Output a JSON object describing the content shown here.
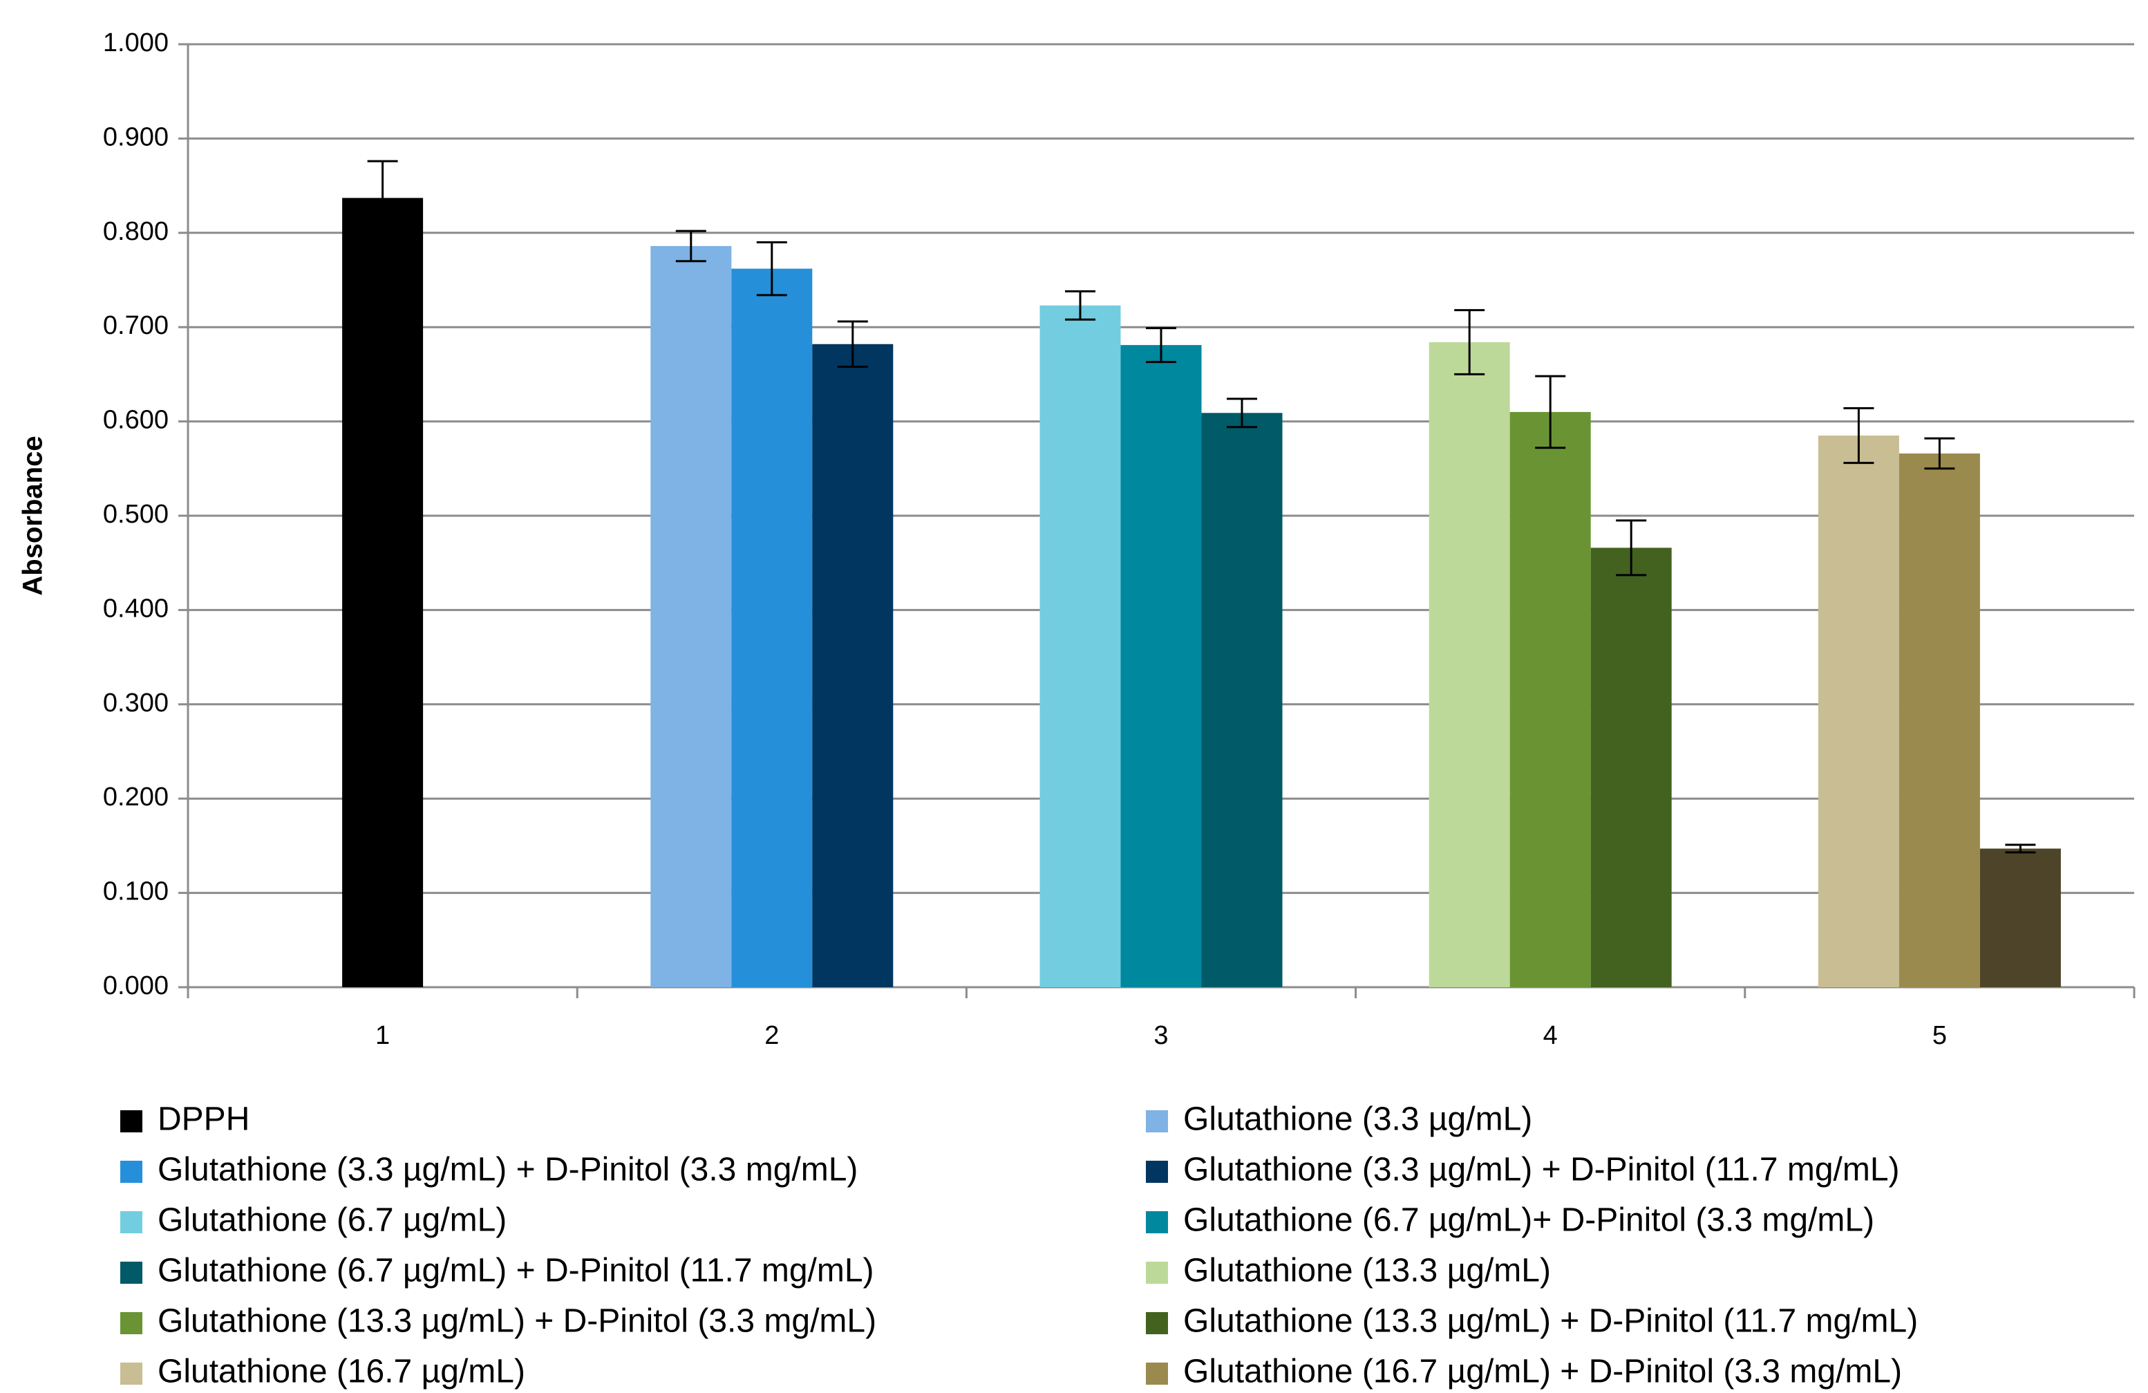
{
  "chart_data": {
    "type": "bar",
    "y_label": "Absorbance",
    "categories": [
      "1",
      "2",
      "3",
      "4",
      "5"
    ],
    "ylim": [
      0,
      1
    ],
    "yticks": [
      {
        "value": 0,
        "label": "0.000"
      },
      {
        "value": 0.1,
        "label": "0.100"
      },
      {
        "value": 0.2,
        "label": "0.200"
      },
      {
        "value": 0.3,
        "label": "0.300"
      },
      {
        "value": 0.4,
        "label": "0.400"
      },
      {
        "value": 0.5,
        "label": "0.500"
      },
      {
        "value": 0.6,
        "label": "0.600"
      },
      {
        "value": 0.7,
        "label": "0.700"
      },
      {
        "value": 0.8,
        "label": "0.800"
      },
      {
        "value": 0.9,
        "label": "0.900"
      },
      {
        "value": 1,
        "label": "1.000"
      }
    ],
    "grid": true,
    "series": [
      {
        "name": "DPPH",
        "color": "#000000",
        "values": [
          0.837,
          null,
          null,
          null,
          null
        ],
        "errors": [
          0.039,
          null,
          null,
          null,
          null
        ]
      },
      {
        "name": "Glutathione (3.3 µg/mL)",
        "color": "#7fb2e5",
        "values": [
          null,
          0.786,
          null,
          null,
          null
        ],
        "errors": [
          null,
          0.016,
          null,
          null,
          null
        ]
      },
      {
        "name": "Glutathione (3.3 µg/mL) + D-Pinitol (3.3 mg/mL)",
        "color": "#2590d9",
        "values": [
          null,
          0.762,
          null,
          null,
          null
        ],
        "errors": [
          null,
          0.028,
          null,
          null,
          null
        ]
      },
      {
        "name": "Glutathione (3.3 µg/mL) + D-Pinitol (11.7 mg/mL)",
        "color": "#003660",
        "values": [
          null,
          0.682,
          null,
          null,
          null
        ],
        "errors": [
          null,
          0.024,
          null,
          null,
          null
        ]
      },
      {
        "name": "Glutathione (6.7 µg/mL)",
        "color": "#72cde0",
        "values": [
          null,
          null,
          0.723,
          null,
          null
        ],
        "errors": [
          null,
          null,
          0.015,
          null,
          null
        ]
      },
      {
        "name": "Glutathione (6.7 µg/mL)+ D-Pinitol (3.3 mg/mL)",
        "color": "#00889f",
        "values": [
          null,
          null,
          0.681,
          null,
          null
        ],
        "errors": [
          null,
          null,
          0.018,
          null,
          null
        ]
      },
      {
        "name": "Glutathione (6.7 µg/mL) + D-Pinitol (11.7 mg/mL)",
        "color": "#005a68",
        "values": [
          null,
          null,
          0.609,
          null,
          null
        ],
        "errors": [
          null,
          null,
          0.015,
          null,
          null
        ]
      },
      {
        "name": "Glutathione (13.3 µg/mL)",
        "color": "#bdd99a",
        "values": [
          null,
          null,
          null,
          0.684,
          null
        ],
        "errors": [
          null,
          null,
          null,
          0.034,
          null
        ]
      },
      {
        "name": "Glutathione (13.3 µg/mL) + D-Pinitol (3.3 mg/mL)",
        "color": "#6a9433",
        "values": [
          null,
          null,
          null,
          0.61,
          null
        ],
        "errors": [
          null,
          null,
          null,
          0.038,
          null
        ]
      },
      {
        "name": "Glutathione (13.3 µg/mL) + D-Pinitol (11.7 mg/mL)",
        "color": "#44621f",
        "values": [
          null,
          null,
          null,
          0.466,
          null
        ],
        "errors": [
          null,
          null,
          null,
          0.029,
          null
        ]
      },
      {
        "name": "Glutathione (16.7 µg/mL)",
        "color": "#c8bd93",
        "values": [
          null,
          null,
          null,
          null,
          0.585
        ],
        "errors": [
          null,
          null,
          null,
          null,
          0.029
        ]
      },
      {
        "name": "Glutathione (16.7 µg/mL) + D-Pinitol (3.3 mg/mL)",
        "color": "#9a8a4e",
        "values": [
          null,
          null,
          null,
          null,
          0.566
        ],
        "errors": [
          null,
          null,
          null,
          null,
          0.016
        ]
      },
      {
        "color": "#4e4429",
        "values": [
          null,
          null,
          null,
          null,
          0.147
        ],
        "errors": [
          null,
          null,
          null,
          null,
          0.004
        ]
      }
    ]
  }
}
